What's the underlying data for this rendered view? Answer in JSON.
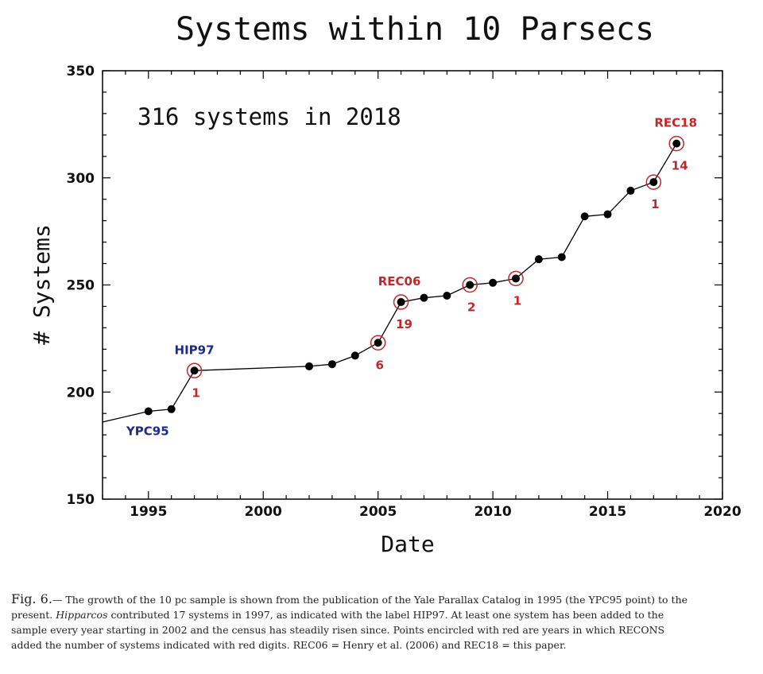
{
  "chart_data": {
    "type": "line",
    "title": "Systems within 10 Parsecs",
    "xlabel": "Date",
    "ylabel": "# Systems",
    "xlim": [
      1993,
      2020
    ],
    "ylim": [
      150,
      350
    ],
    "x_ticks": [
      1995,
      2000,
      2005,
      2010,
      2015,
      2020
    ],
    "y_ticks": [
      150,
      200,
      250,
      300,
      350
    ],
    "inset_text": "316 systems in 2018",
    "line_start": {
      "x": 1993,
      "y": 186
    },
    "points": [
      {
        "x": 1995,
        "y": 191
      },
      {
        "x": 1996,
        "y": 192
      },
      {
        "x": 1997,
        "y": 210
      },
      {
        "x": 2002,
        "y": 212
      },
      {
        "x": 2003,
        "y": 213
      },
      {
        "x": 2004,
        "y": 217
      },
      {
        "x": 2005,
        "y": 223
      },
      {
        "x": 2006,
        "y": 242
      },
      {
        "x": 2007,
        "y": 244
      },
      {
        "x": 2008,
        "y": 245
      },
      {
        "x": 2009,
        "y": 250
      },
      {
        "x": 2010,
        "y": 251
      },
      {
        "x": 2011,
        "y": 253
      },
      {
        "x": 2012,
        "y": 262
      },
      {
        "x": 2013,
        "y": 263
      },
      {
        "x": 2014,
        "y": 282
      },
      {
        "x": 2015,
        "y": 283
      },
      {
        "x": 2016,
        "y": 294
      },
      {
        "x": 2017,
        "y": 298
      },
      {
        "x": 2018,
        "y": 316
      }
    ],
    "circled_years": [
      1997,
      2005,
      2006,
      2009,
      2011,
      2017,
      2018
    ],
    "recons_counts": [
      {
        "x": 1997,
        "label": "1"
      },
      {
        "x": 2005,
        "label": "6"
      },
      {
        "x": 2006,
        "label": "19"
      },
      {
        "x": 2009,
        "label": "2"
      },
      {
        "x": 2011,
        "label": "1"
      },
      {
        "x": 2017,
        "label": "1"
      },
      {
        "x": 2018,
        "label": "14"
      }
    ],
    "labels": [
      {
        "x": 1995,
        "text": "YPC95",
        "color": "blue"
      },
      {
        "x": 1997,
        "text": "HIP97",
        "color": "blue"
      },
      {
        "x": 2006,
        "text": "REC06",
        "color": "red"
      },
      {
        "x": 2018,
        "text": "REC18",
        "color": "red"
      }
    ],
    "grid": false,
    "colors": {
      "line": "#000000",
      "points": "#000000",
      "circle": "#c0282a",
      "red_text": "#c0282a",
      "blue_text": "#1f2a8c"
    }
  },
  "caption": {
    "fig_label": "Fig. 6.",
    "part1": "— The growth of the 10 pc sample is shown from the publication of the Yale Parallax Catalog in 1995 (the YPC95 point) to the present. ",
    "italic": "Hipparcos",
    "part2": " contributed 17 systems in 1997, as indicated with the label HIP97. At least one system has been added to the sample every year starting in 2002 and the census has steadily risen since. Points encircled with red are years in which RECONS added the number of systems indicated with red digits. REC06 = Henry et al. (2006) and REC18 = this paper."
  }
}
